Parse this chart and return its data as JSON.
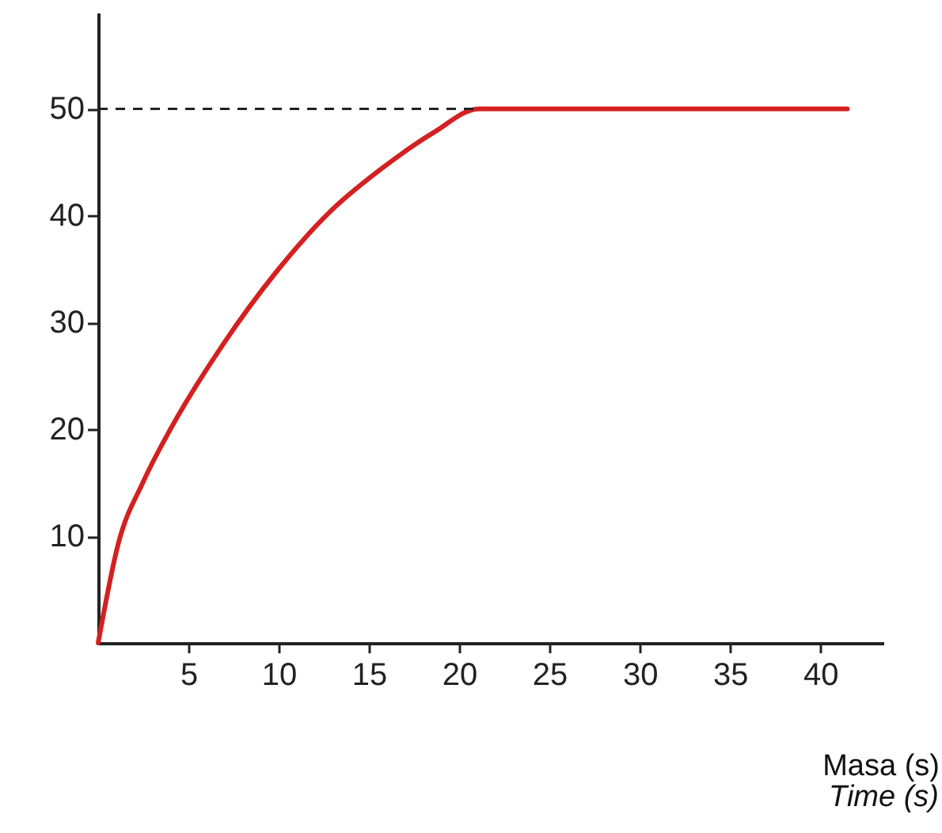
{
  "chart_data": {
    "type": "line",
    "xlabel": "Masa (s)",
    "annotations": [
      "Time (s)"
    ],
    "x": [
      0,
      1.1,
      2.5,
      4,
      6.9,
      9.9,
      12.8,
      15.7,
      18.6,
      21.1,
      41.5
    ],
    "series": [
      {
        "color": "#d42020",
        "values": [
          0,
          9.2,
          15.1,
          20,
          27.9,
          34.8,
          40.3,
          44.4,
          47.8,
          50,
          50
        ]
      }
    ],
    "xlim": [
      0,
      43.5
    ],
    "ylim": [
      0,
      59
    ],
    "xticks": [
      5,
      10,
      15,
      20,
      25,
      30,
      35,
      40
    ],
    "yticks": [
      10,
      20,
      30,
      40,
      50
    ],
    "ref_lines": [
      {
        "axis": "y",
        "value": 50,
        "line_style": "dashed"
      }
    ],
    "grid": false,
    "marker": "none",
    "line_style": "solid"
  }
}
